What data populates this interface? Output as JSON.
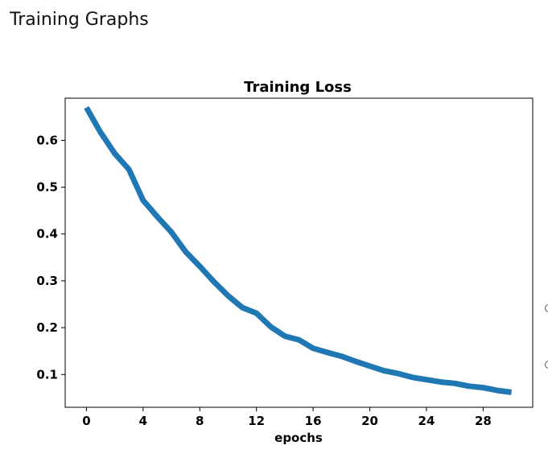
{
  "page": {
    "heading": "Training Graphs"
  },
  "chart_data": {
    "type": "line",
    "title": "Training Loss",
    "xlabel": "epochs",
    "ylabel": "",
    "xlim": [
      -1.5,
      31.5
    ],
    "ylim": [
      0.03,
      0.69
    ],
    "xticks": [
      0,
      4,
      8,
      12,
      16,
      20,
      24,
      28
    ],
    "yticks": [
      0.1,
      0.2,
      0.3,
      0.4,
      0.5,
      0.6
    ],
    "grid": false,
    "series": [
      {
        "color": "#1f77b4",
        "x": [
          0,
          1,
          2,
          3,
          4,
          5,
          6,
          7,
          8,
          9,
          10,
          11,
          12,
          13,
          14,
          15,
          16,
          17,
          18,
          19,
          20,
          21,
          22,
          23,
          24,
          25,
          26,
          27,
          28,
          29,
          30
        ],
        "y": [
          0.67,
          0.617,
          0.572,
          0.538,
          0.472,
          0.437,
          0.404,
          0.362,
          0.331,
          0.298,
          0.268,
          0.243,
          0.231,
          0.202,
          0.182,
          0.174,
          0.156,
          0.147,
          0.139,
          0.128,
          0.118,
          0.108,
          0.102,
          0.094,
          0.089,
          0.084,
          0.081,
          0.075,
          0.072,
          0.066,
          0.062
        ]
      }
    ]
  }
}
